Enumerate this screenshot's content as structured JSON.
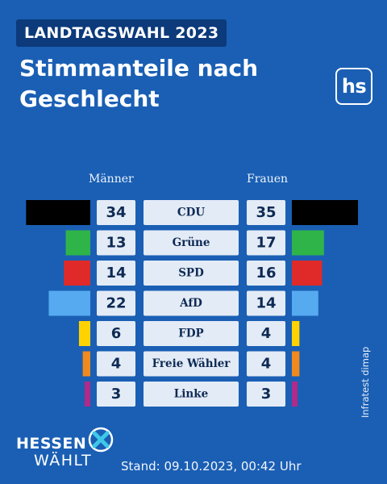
{
  "header": {
    "badge": "LANDTAGSWAHL 2023",
    "title_line1": "Stimmanteile nach",
    "title_line2": "Geschlecht",
    "logo": "hs"
  },
  "columns": {
    "men": "Männer",
    "women": "Frauen"
  },
  "chart_data": {
    "type": "bar",
    "categories": [
      "CDU",
      "Grüne",
      "SPD",
      "AfD",
      "FDP",
      "Freie Wähler",
      "Linke"
    ],
    "series": [
      {
        "name": "Männer",
        "values": [
          34,
          13,
          14,
          22,
          6,
          4,
          3
        ]
      },
      {
        "name": "Frauen",
        "values": [
          35,
          17,
          16,
          14,
          4,
          4,
          3
        ]
      }
    ],
    "colors": [
      "#000000",
      "#2fb44a",
      "#e02a2a",
      "#55aaf0",
      "#ffd200",
      "#f08a1e",
      "#b02a8a"
    ],
    "ylim": [
      0,
      35
    ]
  },
  "footer": {
    "source": "Infratest dimap",
    "brand_line1": "HESSEN",
    "brand_line2": "WÄHLT",
    "brand_icon": "x-vote-icon",
    "stand": "Stand: 09.10.2023, 00:42 Uhr"
  }
}
